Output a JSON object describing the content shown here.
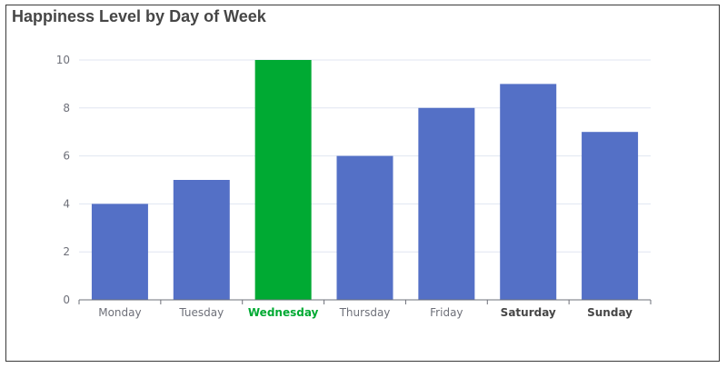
{
  "chart_data": {
    "type": "bar",
    "title": "Happiness Level by Day of Week",
    "xlabel": "",
    "ylabel": "",
    "categories": [
      "Monday",
      "Tuesday",
      "Wednesday",
      "Thursday",
      "Friday",
      "Saturday",
      "Sunday"
    ],
    "values": [
      4,
      5,
      10,
      6,
      8,
      9,
      7
    ],
    "ylim": [
      0,
      10
    ],
    "yticks": [
      "0",
      "2",
      "4",
      "6",
      "8",
      "10"
    ],
    "grid": true,
    "legend": "none",
    "colors": {
      "default_bar": "#5470c6",
      "highlight_bar": "#00aa33",
      "grid": "#e0e6f1",
      "axis": "#6e7079",
      "label": "#6e7079",
      "label_bold": "#464646",
      "label_highlight": "#00aa33"
    },
    "highlight": [
      "Wednesday"
    ],
    "bold_labels": [
      "Saturday",
      "Sunday"
    ]
  }
}
